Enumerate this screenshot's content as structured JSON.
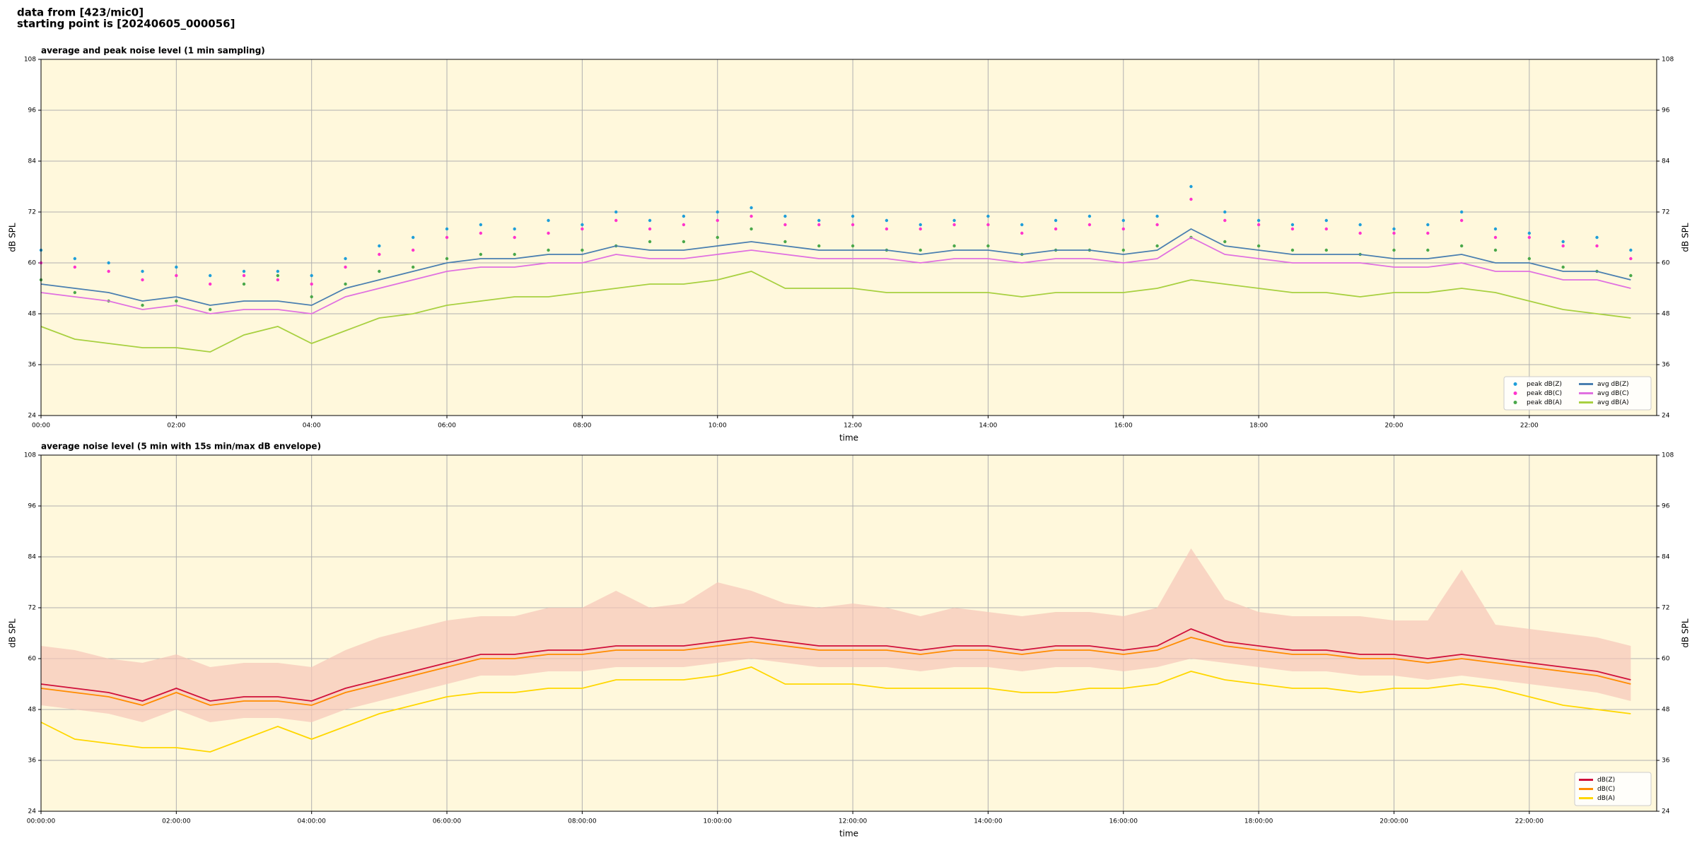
{
  "header": [
    "data from [423/mic0]",
    "starting point is [20240605_000056]"
  ],
  "chart_data": [
    {
      "type": "line",
      "title": "average and peak noise level (1 min sampling)",
      "x_label": "time",
      "y_label": "dB SPL",
      "x": [
        "00:00",
        "00:30",
        "01:00",
        "01:30",
        "02:00",
        "02:30",
        "03:00",
        "03:30",
        "04:00",
        "04:30",
        "05:00",
        "05:30",
        "06:00",
        "06:30",
        "07:00",
        "07:30",
        "08:00",
        "08:30",
        "09:00",
        "09:30",
        "10:00",
        "10:30",
        "11:00",
        "11:30",
        "12:00",
        "12:30",
        "13:00",
        "13:30",
        "14:00",
        "14:30",
        "15:00",
        "15:30",
        "16:00",
        "16:30",
        "17:00",
        "17:30",
        "18:00",
        "18:30",
        "19:00",
        "19:30",
        "20:00",
        "20:30",
        "21:00",
        "21:30",
        "22:00",
        "22:30",
        "23:00",
        "23:30"
      ],
      "xlim": [
        "00:00",
        "23:53"
      ],
      "xticks": [
        "00:00",
        "02:00",
        "04:00",
        "06:00",
        "08:00",
        "10:00",
        "12:00",
        "14:00",
        "16:00",
        "18:00",
        "20:00",
        "22:00"
      ],
      "ylim": [
        24,
        108
      ],
      "yticks": [
        24,
        36,
        48,
        60,
        72,
        84,
        96,
        108
      ],
      "grid": true,
      "background": "#fff8dc",
      "legend": "lower right",
      "legend_columns": 2,
      "series": [
        {
          "name": "peak dB(Z)",
          "type": "scatter",
          "color": "#1f9ed9",
          "values": [
            63,
            61,
            60,
            58,
            59,
            57,
            58,
            58,
            57,
            61,
            64,
            66,
            68,
            69,
            68,
            70,
            69,
            72,
            70,
            71,
            72,
            73,
            71,
            70,
            71,
            70,
            69,
            70,
            71,
            69,
            70,
            71,
            70,
            71,
            78,
            72,
            70,
            69,
            70,
            69,
            68,
            69,
            72,
            68,
            67,
            65,
            66,
            63
          ]
        },
        {
          "name": "peak dB(C)",
          "type": "scatter",
          "color": "#ff33cc",
          "values": [
            60,
            59,
            58,
            56,
            57,
            55,
            57,
            56,
            55,
            59,
            62,
            63,
            66,
            67,
            66,
            67,
            68,
            70,
            68,
            69,
            70,
            71,
            69,
            69,
            69,
            68,
            68,
            69,
            69,
            67,
            68,
            69,
            68,
            69,
            75,
            70,
            69,
            68,
            68,
            67,
            67,
            67,
            70,
            66,
            66,
            64,
            64,
            61
          ]
        },
        {
          "name": "peak dB(A)",
          "type": "scatter",
          "color": "#4aa84a",
          "values": [
            56,
            53,
            51,
            50,
            51,
            49,
            55,
            57,
            52,
            55,
            58,
            59,
            61,
            62,
            62,
            63,
            63,
            64,
            65,
            65,
            66,
            68,
            65,
            64,
            64,
            63,
            63,
            64,
            64,
            62,
            63,
            63,
            63,
            64,
            66,
            65,
            64,
            63,
            63,
            62,
            63,
            63,
            64,
            63,
            61,
            59,
            58,
            57
          ]
        },
        {
          "name": "avg dB(Z)",
          "type": "line",
          "color": "#4a7fb0",
          "values": [
            55,
            54,
            53,
            51,
            52,
            50,
            51,
            51,
            50,
            54,
            56,
            58,
            60,
            61,
            61,
            62,
            62,
            64,
            63,
            63,
            64,
            65,
            64,
            63,
            63,
            63,
            62,
            63,
            63,
            62,
            63,
            63,
            62,
            63,
            68,
            64,
            63,
            62,
            62,
            62,
            61,
            61,
            62,
            60,
            60,
            58,
            58,
            56
          ]
        },
        {
          "name": "avg dB(C)",
          "type": "line",
          "color": "#e070e0",
          "values": [
            53,
            52,
            51,
            49,
            50,
            48,
            49,
            49,
            48,
            52,
            54,
            56,
            58,
            59,
            59,
            60,
            60,
            62,
            61,
            61,
            62,
            63,
            62,
            61,
            61,
            61,
            60,
            61,
            61,
            60,
            61,
            61,
            60,
            61,
            66,
            62,
            61,
            60,
            60,
            60,
            59,
            59,
            60,
            58,
            58,
            56,
            56,
            54
          ]
        },
        {
          "name": "avg dB(A)",
          "type": "line",
          "color": "#a8d040",
          "values": [
            45,
            42,
            41,
            40,
            40,
            39,
            43,
            45,
            41,
            44,
            47,
            48,
            50,
            51,
            52,
            52,
            53,
            54,
            55,
            55,
            56,
            58,
            54,
            54,
            54,
            53,
            53,
            53,
            53,
            52,
            53,
            53,
            53,
            54,
            56,
            55,
            54,
            53,
            53,
            52,
            53,
            53,
            54,
            53,
            51,
            49,
            48,
            47
          ]
        }
      ]
    },
    {
      "type": "line",
      "title": "average noise level (5 min with 15s min/max dB envelope)",
      "x_label": "time",
      "y_label": "dB SPL",
      "x": [
        "00:00:00",
        "00:30:00",
        "01:00:00",
        "01:30:00",
        "02:00:00",
        "02:30:00",
        "03:00:00",
        "03:30:00",
        "04:00:00",
        "04:30:00",
        "05:00:00",
        "05:30:00",
        "06:00:00",
        "06:30:00",
        "07:00:00",
        "07:30:00",
        "08:00:00",
        "08:30:00",
        "09:00:00",
        "09:30:00",
        "10:00:00",
        "10:30:00",
        "11:00:00",
        "11:30:00",
        "12:00:00",
        "12:30:00",
        "13:00:00",
        "13:30:00",
        "14:00:00",
        "14:30:00",
        "15:00:00",
        "15:30:00",
        "16:00:00",
        "16:30:00",
        "17:00:00",
        "17:30:00",
        "18:00:00",
        "18:30:00",
        "19:00:00",
        "19:30:00",
        "20:00:00",
        "20:30:00",
        "21:00:00",
        "21:30:00",
        "22:00:00",
        "22:30:00",
        "23:00:00",
        "23:30:00"
      ],
      "xlim": [
        "00:00:00",
        "23:53:00"
      ],
      "xticks": [
        "00:00:00",
        "02:00:00",
        "04:00:00",
        "06:00:00",
        "08:00:00",
        "10:00:00",
        "12:00:00",
        "14:00:00",
        "16:00:00",
        "18:00:00",
        "20:00:00",
        "22:00:00"
      ],
      "ylim": [
        24,
        108
      ],
      "yticks": [
        24,
        36,
        48,
        60,
        72,
        84,
        96,
        108
      ],
      "grid": true,
      "background": "#fff8dc",
      "legend": "lower right",
      "legend_columns": 1,
      "envelope": {
        "color": "#f7c6b8",
        "low": [
          49,
          48,
          47,
          45,
          48,
          45,
          46,
          46,
          45,
          48,
          50,
          52,
          54,
          56,
          56,
          57,
          57,
          58,
          58,
          58,
          59,
          60,
          59,
          58,
          58,
          58,
          57,
          58,
          58,
          57,
          58,
          58,
          57,
          58,
          60,
          59,
          58,
          57,
          57,
          56,
          56,
          55,
          56,
          55,
          54,
          53,
          52,
          50
        ],
        "high": [
          63,
          62,
          60,
          59,
          61,
          58,
          59,
          59,
          58,
          62,
          65,
          67,
          69,
          70,
          70,
          72,
          72,
          76,
          72,
          73,
          78,
          76,
          73,
          72,
          73,
          72,
          70,
          72,
          71,
          70,
          71,
          71,
          70,
          72,
          86,
          74,
          71,
          70,
          70,
          70,
          69,
          69,
          81,
          68,
          67,
          66,
          65,
          63
        ]
      },
      "series": [
        {
          "name": "dB(Z)",
          "type": "line",
          "color": "#d0103a",
          "values": [
            54,
            53,
            52,
            50,
            53,
            50,
            51,
            51,
            50,
            53,
            55,
            57,
            59,
            61,
            61,
            62,
            62,
            63,
            63,
            63,
            64,
            65,
            64,
            63,
            63,
            63,
            62,
            63,
            63,
            62,
            63,
            63,
            62,
            63,
            67,
            64,
            63,
            62,
            62,
            61,
            61,
            60,
            61,
            60,
            59,
            58,
            57,
            55
          ]
        },
        {
          "name": "dB(C)",
          "type": "line",
          "color": "#ff8c00",
          "values": [
            53,
            52,
            51,
            49,
            52,
            49,
            50,
            50,
            49,
            52,
            54,
            56,
            58,
            60,
            60,
            61,
            61,
            62,
            62,
            62,
            63,
            64,
            63,
            62,
            62,
            62,
            61,
            62,
            62,
            61,
            62,
            62,
            61,
            62,
            65,
            63,
            62,
            61,
            61,
            60,
            60,
            59,
            60,
            59,
            58,
            57,
            56,
            54
          ]
        },
        {
          "name": "dB(A)",
          "type": "line",
          "color": "#ffd700",
          "values": [
            45,
            41,
            40,
            39,
            39,
            38,
            41,
            44,
            41,
            44,
            47,
            49,
            51,
            52,
            52,
            53,
            53,
            55,
            55,
            55,
            56,
            58,
            54,
            54,
            54,
            53,
            53,
            53,
            53,
            52,
            52,
            53,
            53,
            54,
            57,
            55,
            54,
            53,
            53,
            52,
            53,
            53,
            54,
            53,
            51,
            49,
            48,
            47
          ]
        }
      ]
    }
  ]
}
